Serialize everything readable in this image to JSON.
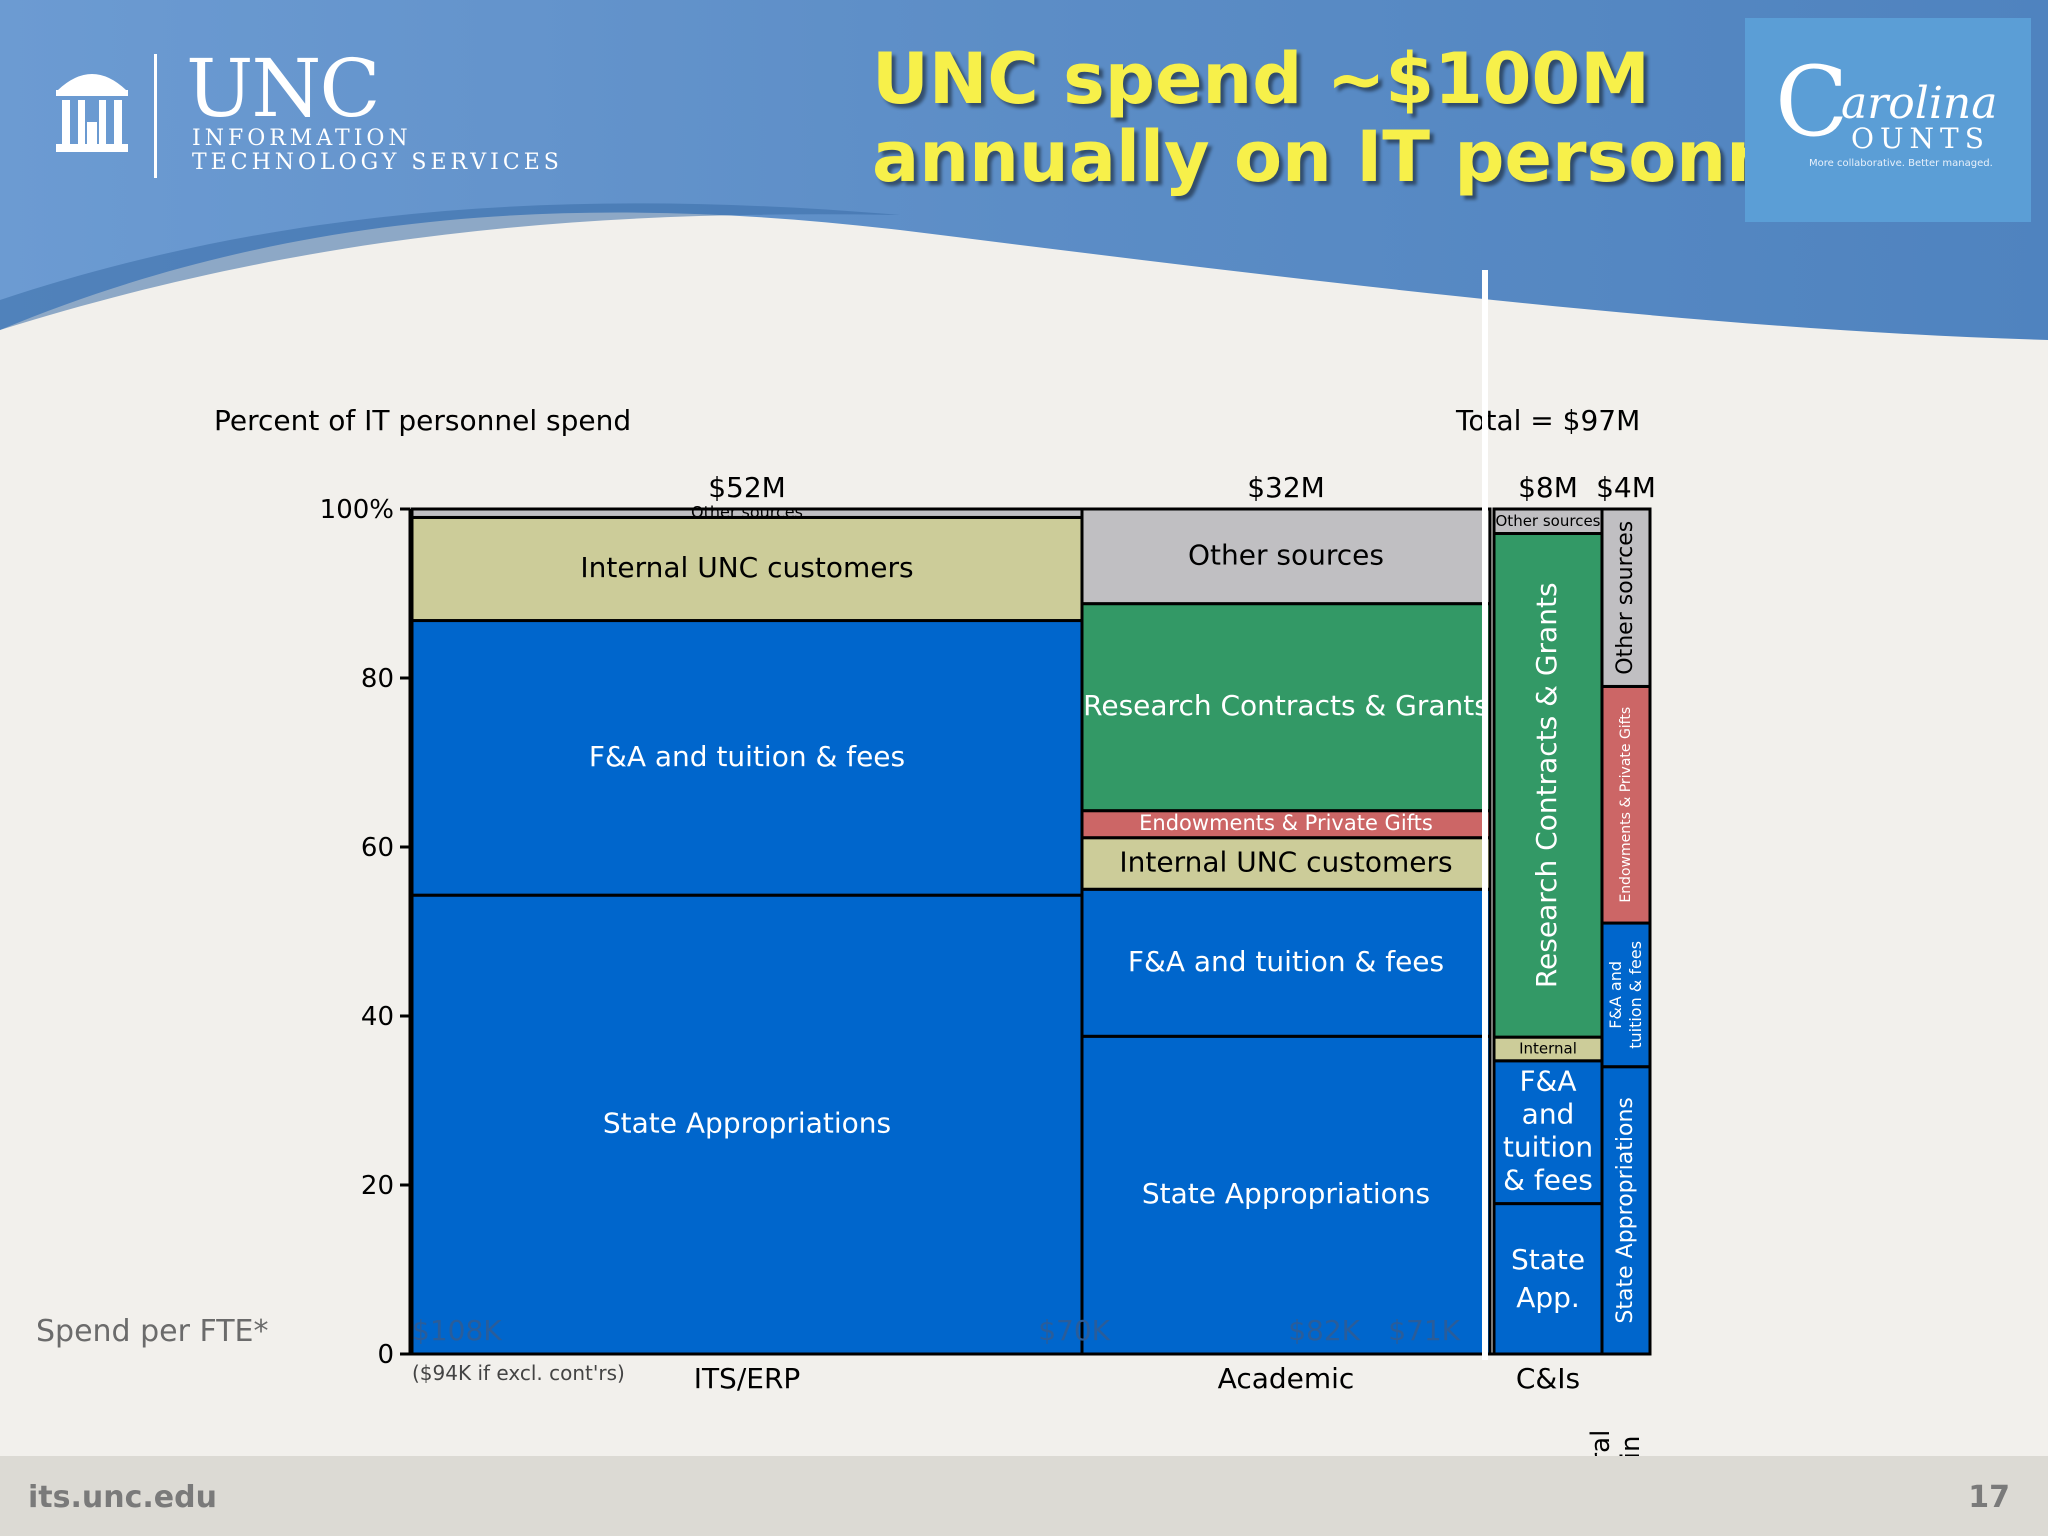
{
  "slide": {
    "title_line1": "UNC spend ~$100M",
    "title_line2": "annually on IT personnel",
    "logo_unc": "UNC",
    "logo_sub1": "INFORMATION",
    "logo_sub2": "TECHNOLOGY SERVICES",
    "cc_logo_c": "C",
    "cc_logo_word1": "arolina",
    "cc_logo_word2": "OUNTS",
    "cc_logo_tagline": "More collaborative. Better managed.",
    "footer_url": "its.unc.edu",
    "page_number": "17",
    "colors": {
      "header_blue": "#5d8fc8",
      "title_yellow": "#f7f04a",
      "state_blue": "#0066cc",
      "internal_tan": "#cccc99",
      "research_green": "#339966",
      "endow_red": "#cc6666",
      "other_gray": "#c0bfc2"
    }
  },
  "chart_data": {
    "type": "marimekko",
    "ylabel": "Percent of IT personnel spend",
    "total_label": "Total = $97M",
    "ylim": [
      0,
      100
    ],
    "yticks": [
      0,
      20,
      40,
      60,
      80,
      100
    ],
    "ytick_labels": [
      "0",
      "20",
      "40",
      "60",
      "80",
      "100%"
    ],
    "fte_label": "Spend per FTE*",
    "columns": [
      {
        "name": "ITS/ERP",
        "total": "$52M",
        "width_musd": 52,
        "fte_spend": "$108K",
        "fte_note": "($94K if excl. cont'rs)",
        "segments": [
          {
            "label": "State Appropriations",
            "value": 54.3,
            "color": "#0066cc"
          },
          {
            "label": "F&A and tuition & fees",
            "value": 32.5,
            "color": "#0066cc"
          },
          {
            "label": "Internal UNC customers",
            "value": 12.2,
            "color": "#cccc99"
          },
          {
            "label": "Other sources",
            "value": 1.0,
            "color": "#c0bfc2"
          }
        ]
      },
      {
        "name": "Academic",
        "total": "$32M",
        "width_musd": 32,
        "fte_spend": "$70K",
        "segments": [
          {
            "label": "State Appropriations",
            "value": 37.6,
            "color": "#0066cc"
          },
          {
            "label": "F&A and tuition & fees",
            "value": 17.4,
            "color": "#0066cc"
          },
          {
            "label": "Internal UNC customers",
            "value": 6.1,
            "color": "#cccc99"
          },
          {
            "label": "Endowments & Private Gifts",
            "value": 3.2,
            "color": "#cc6666"
          },
          {
            "label": "Research Contracts & Grants",
            "value": 24.5,
            "color": "#339966"
          },
          {
            "label": "Other sources",
            "value": 11.2,
            "color": "#c0bfc2"
          }
        ]
      },
      {
        "name": "C&Is",
        "total": "$8M",
        "width_musd": 8,
        "fte_spend": "$82K",
        "segments": [
          {
            "label": "State App.",
            "value": 17.8,
            "color": "#0066cc"
          },
          {
            "label": "F&A and tuition & fees",
            "value": 16.9,
            "color": "#0066cc"
          },
          {
            "label": "Internal",
            "value": 2.8,
            "color": "#cccc99"
          },
          {
            "label": "Research Contracts & Grants",
            "value": 59.6,
            "color": "#339966"
          },
          {
            "label": "Other sources",
            "value": 2.9,
            "color": "#c0bfc2"
          }
        ]
      },
      {
        "name": "Central Admin",
        "total": "$4M",
        "width_musd": 4,
        "fte_spend": "$71K",
        "segments": [
          {
            "label": "State Appropriations",
            "value": 34.0,
            "color": "#0066cc"
          },
          {
            "label": "F&A and tuition & fees",
            "value": 17.0,
            "color": "#0066cc"
          },
          {
            "label": "Endowments & Private Gifts",
            "value": 28.0,
            "color": "#cc6666"
          },
          {
            "label": "Other sources",
            "value": 21.0,
            "color": "#c0bfc2"
          }
        ]
      }
    ]
  }
}
